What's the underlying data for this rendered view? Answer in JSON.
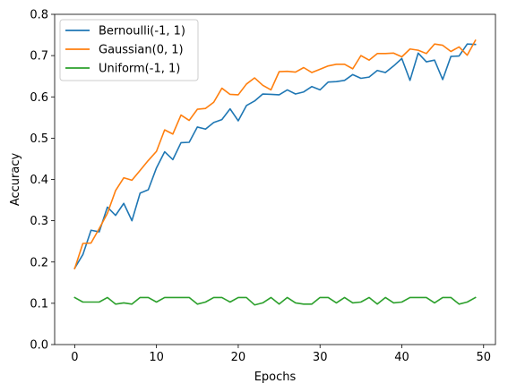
{
  "chart_data": {
    "type": "line",
    "title": "",
    "xlabel": "Epochs",
    "ylabel": "Accuracy",
    "xlim": [
      -2.45,
      51.45
    ],
    "ylim": [
      0,
      0.8
    ],
    "xticks": [
      0,
      10,
      20,
      30,
      40,
      50
    ],
    "yticks": [
      0.0,
      0.1,
      0.2,
      0.3,
      0.4,
      0.5,
      0.6,
      0.7,
      0.8
    ],
    "grid": false,
    "legend_position": "top-left",
    "x": [
      0,
      1,
      2,
      3,
      4,
      5,
      6,
      7,
      8,
      9,
      10,
      11,
      12,
      13,
      14,
      15,
      16,
      17,
      18,
      19,
      20,
      21,
      22,
      23,
      24,
      25,
      26,
      27,
      28,
      29,
      30,
      31,
      32,
      33,
      34,
      35,
      36,
      37,
      38,
      39,
      40,
      41,
      42,
      43,
      44,
      45,
      46,
      47,
      48,
      49
    ],
    "series": [
      {
        "name": "Bernoulli(-1, 1)",
        "color": "#1f77b4",
        "values": [
          0.185,
          0.218,
          0.277,
          0.273,
          0.333,
          0.313,
          0.342,
          0.3,
          0.367,
          0.375,
          0.428,
          0.467,
          0.448,
          0.489,
          0.49,
          0.527,
          0.522,
          0.538,
          0.545,
          0.571,
          0.542,
          0.579,
          0.59,
          0.607,
          0.606,
          0.605,
          0.617,
          0.607,
          0.612,
          0.625,
          0.617,
          0.636,
          0.637,
          0.64,
          0.654,
          0.645,
          0.648,
          0.664,
          0.659,
          0.675,
          0.693,
          0.64,
          0.706,
          0.685,
          0.689,
          0.642,
          0.698,
          0.699,
          0.728,
          0.727
        ]
      },
      {
        "name": "Gaussian(0, 1)",
        "color": "#ff7f0e",
        "values": [
          0.184,
          0.245,
          0.246,
          0.281,
          0.318,
          0.373,
          0.404,
          0.398,
          0.422,
          0.446,
          0.468,
          0.52,
          0.51,
          0.556,
          0.543,
          0.57,
          0.572,
          0.587,
          0.621,
          0.606,
          0.605,
          0.631,
          0.646,
          0.628,
          0.617,
          0.661,
          0.662,
          0.66,
          0.671,
          0.659,
          0.667,
          0.675,
          0.679,
          0.679,
          0.668,
          0.7,
          0.689,
          0.705,
          0.705,
          0.706,
          0.697,
          0.716,
          0.713,
          0.705,
          0.728,
          0.725,
          0.71,
          0.721,
          0.701,
          0.737
        ]
      },
      {
        "name": "Uniform(-1, 1)",
        "color": "#2ca02c",
        "values": [
          0.114,
          0.103,
          0.103,
          0.103,
          0.114,
          0.098,
          0.101,
          0.098,
          0.114,
          0.114,
          0.103,
          0.114,
          0.114,
          0.114,
          0.114,
          0.098,
          0.103,
          0.114,
          0.114,
          0.103,
          0.114,
          0.114,
          0.096,
          0.101,
          0.114,
          0.098,
          0.114,
          0.101,
          0.098,
          0.098,
          0.114,
          0.114,
          0.101,
          0.114,
          0.101,
          0.103,
          0.114,
          0.098,
          0.114,
          0.101,
          0.103,
          0.114,
          0.114,
          0.114,
          0.101,
          0.114,
          0.114,
          0.098,
          0.103,
          0.114
        ]
      }
    ]
  }
}
